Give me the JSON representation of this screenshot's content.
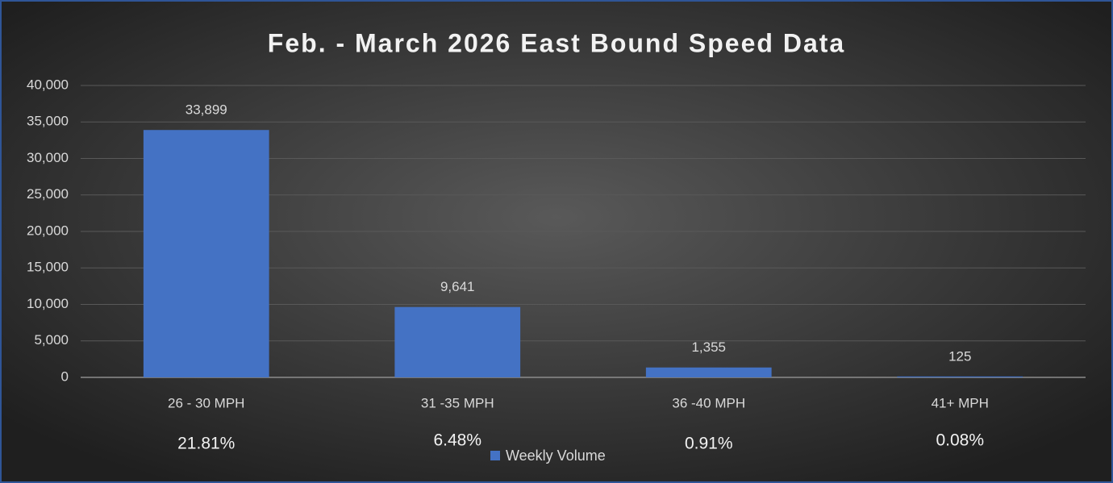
{
  "chart_data": {
    "type": "bar",
    "title": "Feb. - March 2026 East Bound Speed Data",
    "categories": [
      "26 - 30 MPH",
      "31 -35 MPH",
      "36 -40 MPH",
      "41+ MPH"
    ],
    "series": [
      {
        "name": "Weekly Volume",
        "color": "#4472c4",
        "values": [
          33899,
          9641,
          1355,
          125
        ],
        "value_labels": [
          "33,899",
          "9,641",
          "1,355",
          "125"
        ]
      }
    ],
    "annotations": [
      "21.81%",
      "6.48%",
      "0.91%",
      "0.08%"
    ],
    "ylim": [
      0,
      40000
    ],
    "yticks": [
      0,
      {
        "value": 5000,
        "label": "5,000"
      },
      {
        "value": 10000,
        "label": "10,000"
      },
      {
        "value": 15000,
        "label": "15,000"
      },
      {
        "value": 20000,
        "label": "20,000"
      },
      {
        "value": 25000,
        "label": "25,000"
      },
      {
        "value": 30000,
        "label": "30,000"
      },
      {
        "value": 35000,
        "label": "35,000"
      },
      {
        "value": 40000,
        "label": "40,000"
      }
    ],
    "grid": true,
    "legend": "bottom"
  }
}
